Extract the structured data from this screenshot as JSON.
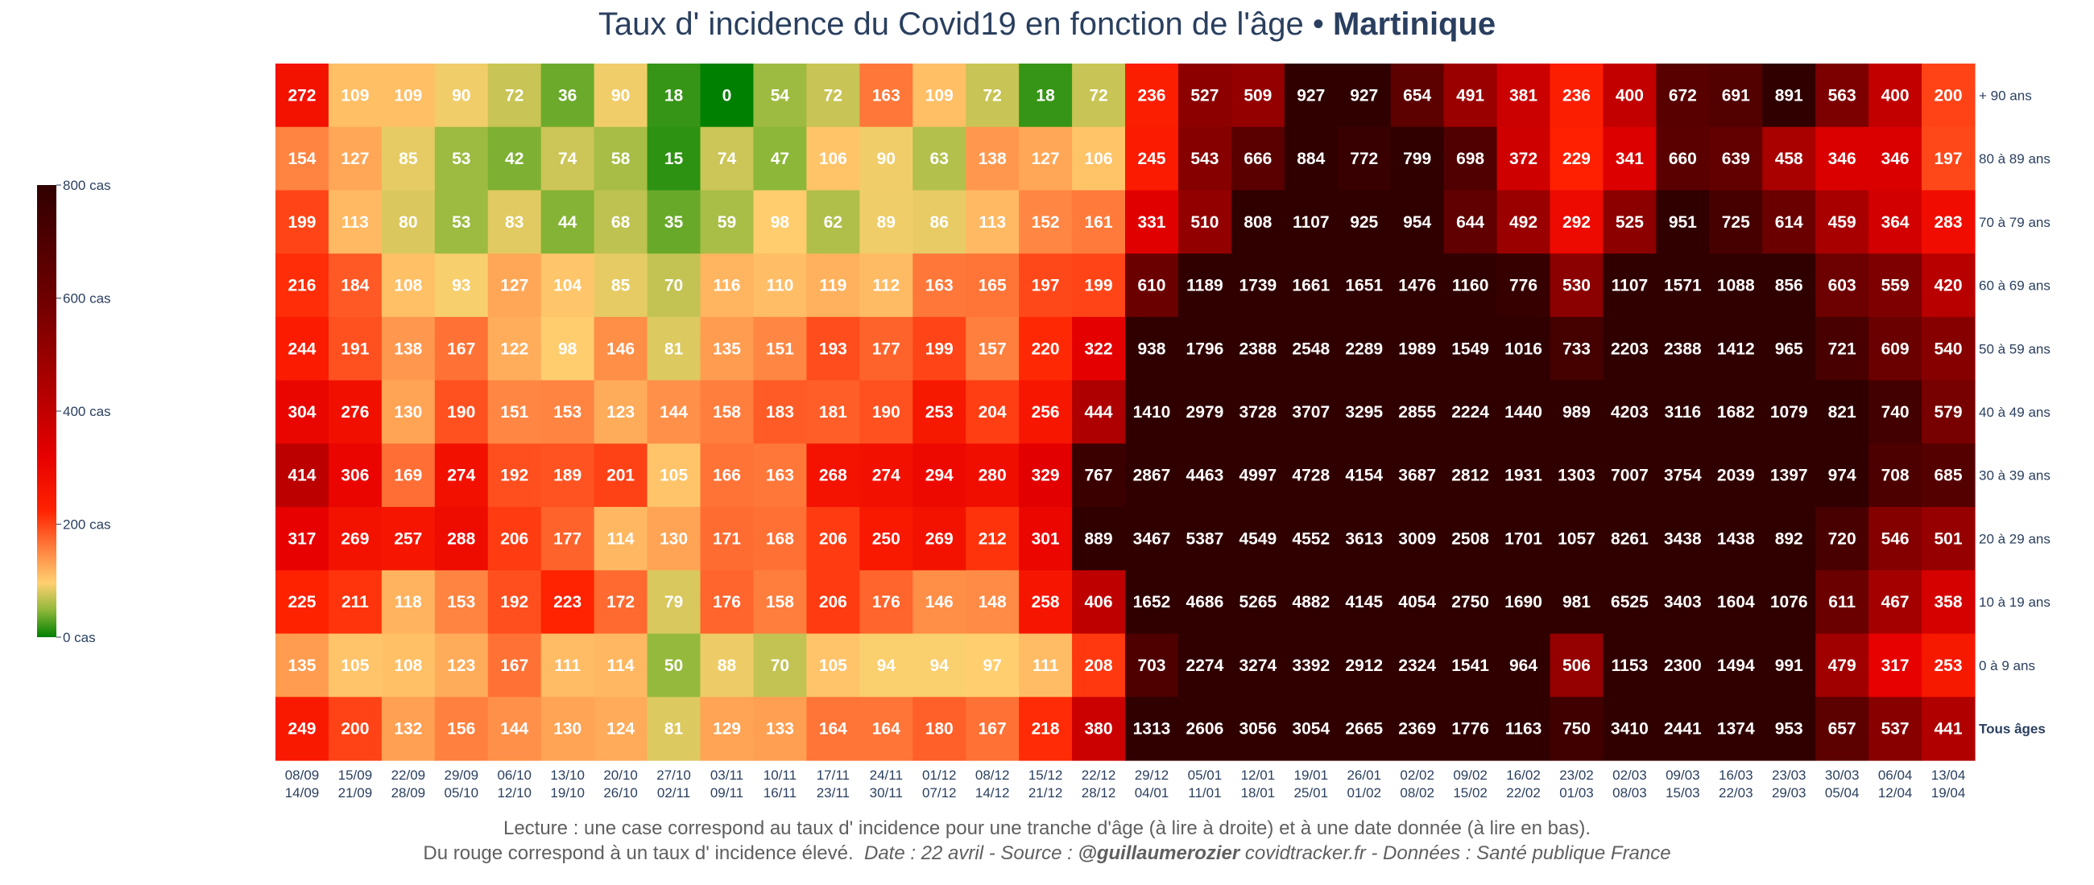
{
  "title": {
    "main": "Taux d' incidence du Covid19 en fonction de l'âge • ",
    "region": "Martinique"
  },
  "footer": {
    "line1": "Lecture : une case correspond au taux d' incidence pour une tranche d'âge (à lire à droite) et à une date donnée (à lire en bas).",
    "line2_prefix": "Du rouge correspond à un taux d' incidence élevé.",
    "date_source": "Date : 22 avril - Source : ",
    "author": "@guillaumerozier",
    "site_data": " covidtracker.fr - Données : Santé publique France"
  },
  "chart_data": {
    "type": "heatmap",
    "title": "Taux d' incidence du Covid19 en fonction de l'âge • Martinique",
    "x": [
      [
        "08/09",
        "14/09"
      ],
      [
        "15/09",
        "21/09"
      ],
      [
        "22/09",
        "28/09"
      ],
      [
        "29/09",
        "05/10"
      ],
      [
        "06/10",
        "12/10"
      ],
      [
        "13/10",
        "19/10"
      ],
      [
        "20/10",
        "26/10"
      ],
      [
        "27/10",
        "02/11"
      ],
      [
        "03/11",
        "09/11"
      ],
      [
        "10/11",
        "16/11"
      ],
      [
        "17/11",
        "23/11"
      ],
      [
        "24/11",
        "30/11"
      ],
      [
        "01/12",
        "07/12"
      ],
      [
        "08/12",
        "14/12"
      ],
      [
        "15/12",
        "21/12"
      ],
      [
        "22/12",
        "28/12"
      ],
      [
        "29/12",
        "04/01"
      ],
      [
        "05/01",
        "11/01"
      ],
      [
        "12/01",
        "18/01"
      ],
      [
        "19/01",
        "25/01"
      ],
      [
        "26/01",
        "01/02"
      ],
      [
        "02/02",
        "08/02"
      ],
      [
        "09/02",
        "15/02"
      ],
      [
        "16/02",
        "22/02"
      ],
      [
        "23/02",
        "01/03"
      ],
      [
        "02/03",
        "08/03"
      ],
      [
        "09/03",
        "15/03"
      ],
      [
        "16/03",
        "22/03"
      ],
      [
        "23/03",
        "29/03"
      ],
      [
        "30/03",
        "05/04"
      ],
      [
        "06/04",
        "12/04"
      ],
      [
        "13/04",
        "19/04"
      ]
    ],
    "y": [
      "+ 90 ans",
      "80 à 89 ans",
      "70 à 79 ans",
      "60 à 69 ans",
      "50 à 59 ans",
      "40 à 49 ans",
      "30 à 39 ans",
      "20 à 29 ans",
      "10 à 19 ans",
      "0 à 9 ans",
      "Tous âges"
    ],
    "y_bold": [
      false,
      false,
      false,
      false,
      false,
      false,
      false,
      false,
      false,
      false,
      true
    ],
    "z": [
      [
        272,
        109,
        109,
        90,
        72,
        36,
        90,
        18,
        0,
        54,
        72,
        163,
        109,
        72,
        18,
        72,
        236,
        527,
        509,
        927,
        927,
        654,
        491,
        381,
        236,
        400,
        672,
        691,
        891,
        563,
        400,
        200
      ],
      [
        154,
        127,
        85,
        53,
        42,
        74,
        58,
        15,
        74,
        47,
        106,
        90,
        63,
        138,
        127,
        106,
        245,
        543,
        666,
        884,
        772,
        799,
        698,
        372,
        229,
        341,
        660,
        639,
        458,
        346,
        346,
        197
      ],
      [
        199,
        113,
        80,
        53,
        83,
        44,
        68,
        35,
        59,
        98,
        62,
        89,
        86,
        113,
        152,
        161,
        331,
        510,
        808,
        1107,
        925,
        954,
        644,
        492,
        292,
        525,
        951,
        725,
        614,
        459,
        364,
        283
      ],
      [
        216,
        184,
        108,
        93,
        127,
        104,
        85,
        70,
        116,
        110,
        119,
        112,
        163,
        165,
        197,
        199,
        610,
        1189,
        1739,
        1661,
        1651,
        1476,
        1160,
        776,
        530,
        1107,
        1571,
        1088,
        856,
        603,
        559,
        420
      ],
      [
        244,
        191,
        138,
        167,
        122,
        98,
        146,
        81,
        135,
        151,
        193,
        177,
        199,
        157,
        220,
        322,
        938,
        1796,
        2388,
        2548,
        2289,
        1989,
        1549,
        1016,
        733,
        2203,
        2388,
        1412,
        965,
        721,
        609,
        540
      ],
      [
        304,
        276,
        130,
        190,
        151,
        153,
        123,
        144,
        158,
        183,
        181,
        190,
        253,
        204,
        256,
        444,
        1410,
        2979,
        3728,
        3707,
        3295,
        2855,
        2224,
        1440,
        989,
        4203,
        3116,
        1682,
        1079,
        821,
        740,
        579
      ],
      [
        414,
        306,
        169,
        274,
        192,
        189,
        201,
        105,
        166,
        163,
        268,
        274,
        294,
        280,
        329,
        767,
        2867,
        4463,
        4997,
        4728,
        4154,
        3687,
        2812,
        1931,
        1303,
        7007,
        3754,
        2039,
        1397,
        974,
        708,
        685
      ],
      [
        317,
        269,
        257,
        288,
        206,
        177,
        114,
        130,
        171,
        168,
        206,
        250,
        269,
        212,
        301,
        889,
        3467,
        5387,
        4549,
        4552,
        3613,
        3009,
        2508,
        1701,
        1057,
        8261,
        3438,
        1438,
        892,
        720,
        546,
        501
      ],
      [
        225,
        211,
        118,
        153,
        192,
        223,
        172,
        79,
        176,
        158,
        206,
        176,
        146,
        148,
        258,
        406,
        1652,
        4686,
        5265,
        4882,
        4145,
        4054,
        2750,
        1690,
        981,
        6525,
        3403,
        1604,
        1076,
        611,
        467,
        358
      ],
      [
        135,
        105,
        108,
        123,
        167,
        111,
        114,
        50,
        88,
        70,
        105,
        94,
        94,
        97,
        111,
        208,
        703,
        2274,
        3274,
        3392,
        2912,
        2324,
        1541,
        964,
        506,
        1153,
        2300,
        1494,
        991,
        479,
        317,
        253
      ],
      [
        249,
        200,
        132,
        156,
        144,
        130,
        124,
        81,
        129,
        133,
        164,
        164,
        180,
        167,
        218,
        380,
        1313,
        2606,
        3056,
        3054,
        2665,
        2369,
        1776,
        1163,
        750,
        3410,
        2441,
        1374,
        953,
        657,
        537,
        441
      ]
    ],
    "zmin": 0,
    "zmax": 800,
    "colorscale": [
      [
        0.0,
        "#008000"
      ],
      [
        0.06,
        "#90b83a"
      ],
      [
        0.12,
        "#ffd070"
      ],
      [
        0.2,
        "#ff7b3c"
      ],
      [
        0.28,
        "#ff2200"
      ],
      [
        0.4,
        "#e60000"
      ],
      [
        0.55,
        "#b00000"
      ],
      [
        0.75,
        "#6e0000"
      ],
      [
        1.0,
        "#300000"
      ]
    ],
    "colorbar": {
      "ticks": [
        0,
        200,
        400,
        600,
        800
      ],
      "ticktext": [
        "0 cas",
        "200 cas",
        "400 cas",
        "600 cas",
        "800 cas"
      ]
    }
  }
}
